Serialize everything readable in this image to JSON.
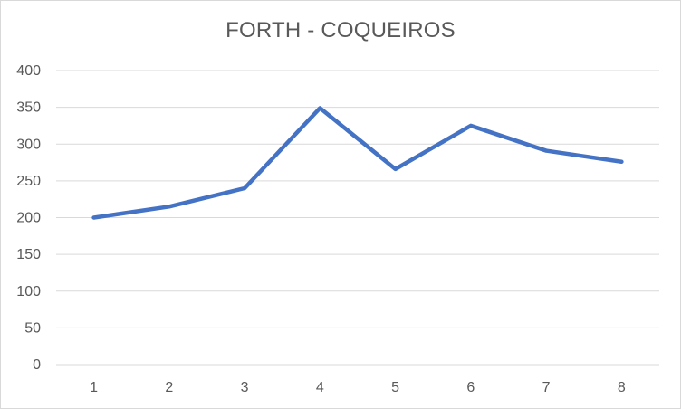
{
  "chart_data": {
    "type": "line",
    "title": "FORTH - COQUEIROS",
    "xlabel": "",
    "ylabel": "",
    "categories": [
      "1",
      "2",
      "3",
      "4",
      "5",
      "6",
      "7",
      "8"
    ],
    "series": [
      {
        "values": [
          200,
          215,
          240,
          349,
          266,
          325,
          291,
          276
        ],
        "color": "#4472c4"
      }
    ],
    "ylim": [
      0,
      400
    ],
    "yticks": [
      "0",
      "50",
      "100",
      "150",
      "200",
      "250",
      "300",
      "350",
      "400"
    ],
    "grid": true,
    "legend": "none",
    "colors": {
      "gridline": "#d9d9d9",
      "text": "#595959",
      "line": "#4472c4"
    }
  }
}
